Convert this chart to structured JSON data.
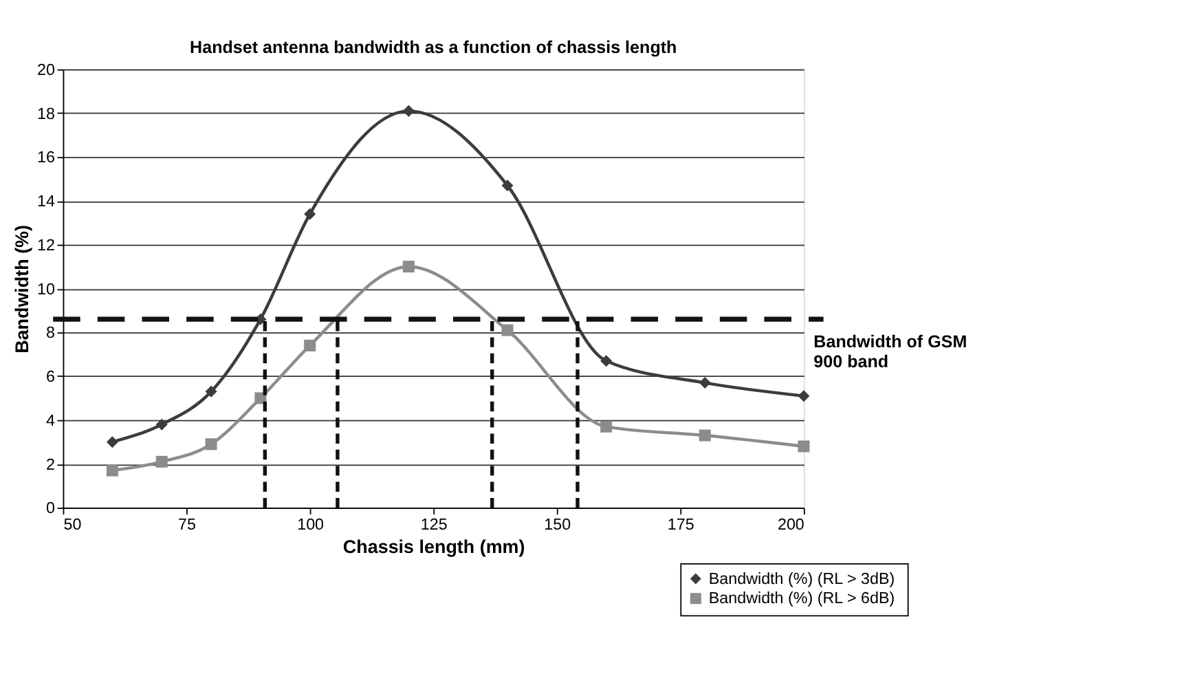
{
  "chart_data": {
    "type": "line",
    "title": "Handset antenna bandwidth as a function of chassis length",
    "xlabel": "Chassis length (mm)",
    "ylabel": "Bandwidth (%)",
    "xlim": [
      50,
      200
    ],
    "xticks": [
      50,
      75,
      100,
      125,
      150,
      175,
      200
    ],
    "ylim": [
      0,
      20
    ],
    "yticks": [
      0,
      2,
      4,
      6,
      8,
      10,
      12,
      14,
      16,
      18,
      20
    ],
    "grid": "y",
    "legend": "bottom right",
    "series": [
      {
        "name": "Bandwidth (%) (RL > 3dB)",
        "color": "#3c3c3c",
        "marker": "diamond",
        "x": [
          60,
          70,
          80,
          90,
          100,
          120,
          140,
          160,
          180,
          200
        ],
        "values": [
          3.0,
          3.8,
          5.3,
          8.6,
          13.4,
          18.1,
          14.7,
          6.7,
          5.7,
          5.1
        ]
      },
      {
        "name": "Bandwidth (%)  (RL > 6dB)",
        "color": "#8c8c8c",
        "marker": "square",
        "x": [
          60,
          70,
          80,
          90,
          100,
          120,
          140,
          160,
          180,
          200
        ],
        "values": [
          1.7,
          2.1,
          2.9,
          5.0,
          7.4,
          11.0,
          8.1,
          3.7,
          3.3,
          2.8
        ]
      },
      {
        "color": "#111111",
        "marker": "none",
        "line_style": "dashed",
        "x": [
          90.9,
          90.9
        ],
        "values": [
          0,
          8.6
        ]
      },
      {
        "color": "#111111",
        "marker": "none",
        "line_style": "dashed",
        "x": [
          105.6,
          105.6
        ],
        "values": [
          0,
          8.6
        ]
      },
      {
        "color": "#111111",
        "marker": "none",
        "line_style": "dashed",
        "x": [
          136.9,
          136.9
        ],
        "values": [
          0,
          8.6
        ]
      },
      {
        "color": "#111111",
        "marker": "none",
        "line_style": "dashed",
        "x": [
          154.2,
          154.2
        ],
        "values": [
          0,
          8.6
        ]
      }
    ],
    "ref_lines": [
      {
        "axis": "y",
        "value": 8.6,
        "label": "Bandwidth of GSM 900 band",
        "color": "#111111",
        "line_style": "dashed"
      }
    ]
  }
}
